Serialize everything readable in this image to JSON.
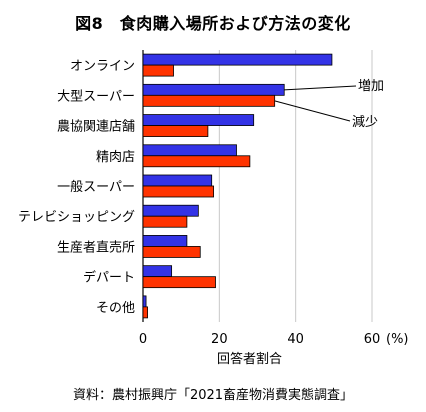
{
  "chart_data": {
    "type": "bar",
    "orientation": "horizontal",
    "title": "図8　食肉購入場所および方法の変化",
    "source": "資料：農村振興庁「2021畜産物消費実態調査」",
    "categories": [
      "オンライン",
      "大型スーパー",
      "農協関連店舗",
      "精肉店",
      "一般スーパー",
      "テレビショッピング",
      "生産者直売所",
      "デパート",
      "その他"
    ],
    "series": [
      {
        "name": "増加",
        "color": "#3333e6",
        "values": [
          49.5,
          37.0,
          29.0,
          24.5,
          18.0,
          14.5,
          11.5,
          7.5,
          0.8
        ]
      },
      {
        "name": "減少",
        "color": "#ff3300",
        "values": [
          8.0,
          34.5,
          17.0,
          28.0,
          18.5,
          11.5,
          15.0,
          19.0,
          1.2
        ]
      }
    ],
    "xlabel": "回答者割合",
    "x_ticks": [
      0,
      20,
      40,
      60
    ],
    "x_unit": "(%)",
    "xlim": [
      0,
      60
    ],
    "grid": true,
    "legend": "annotations-right"
  }
}
